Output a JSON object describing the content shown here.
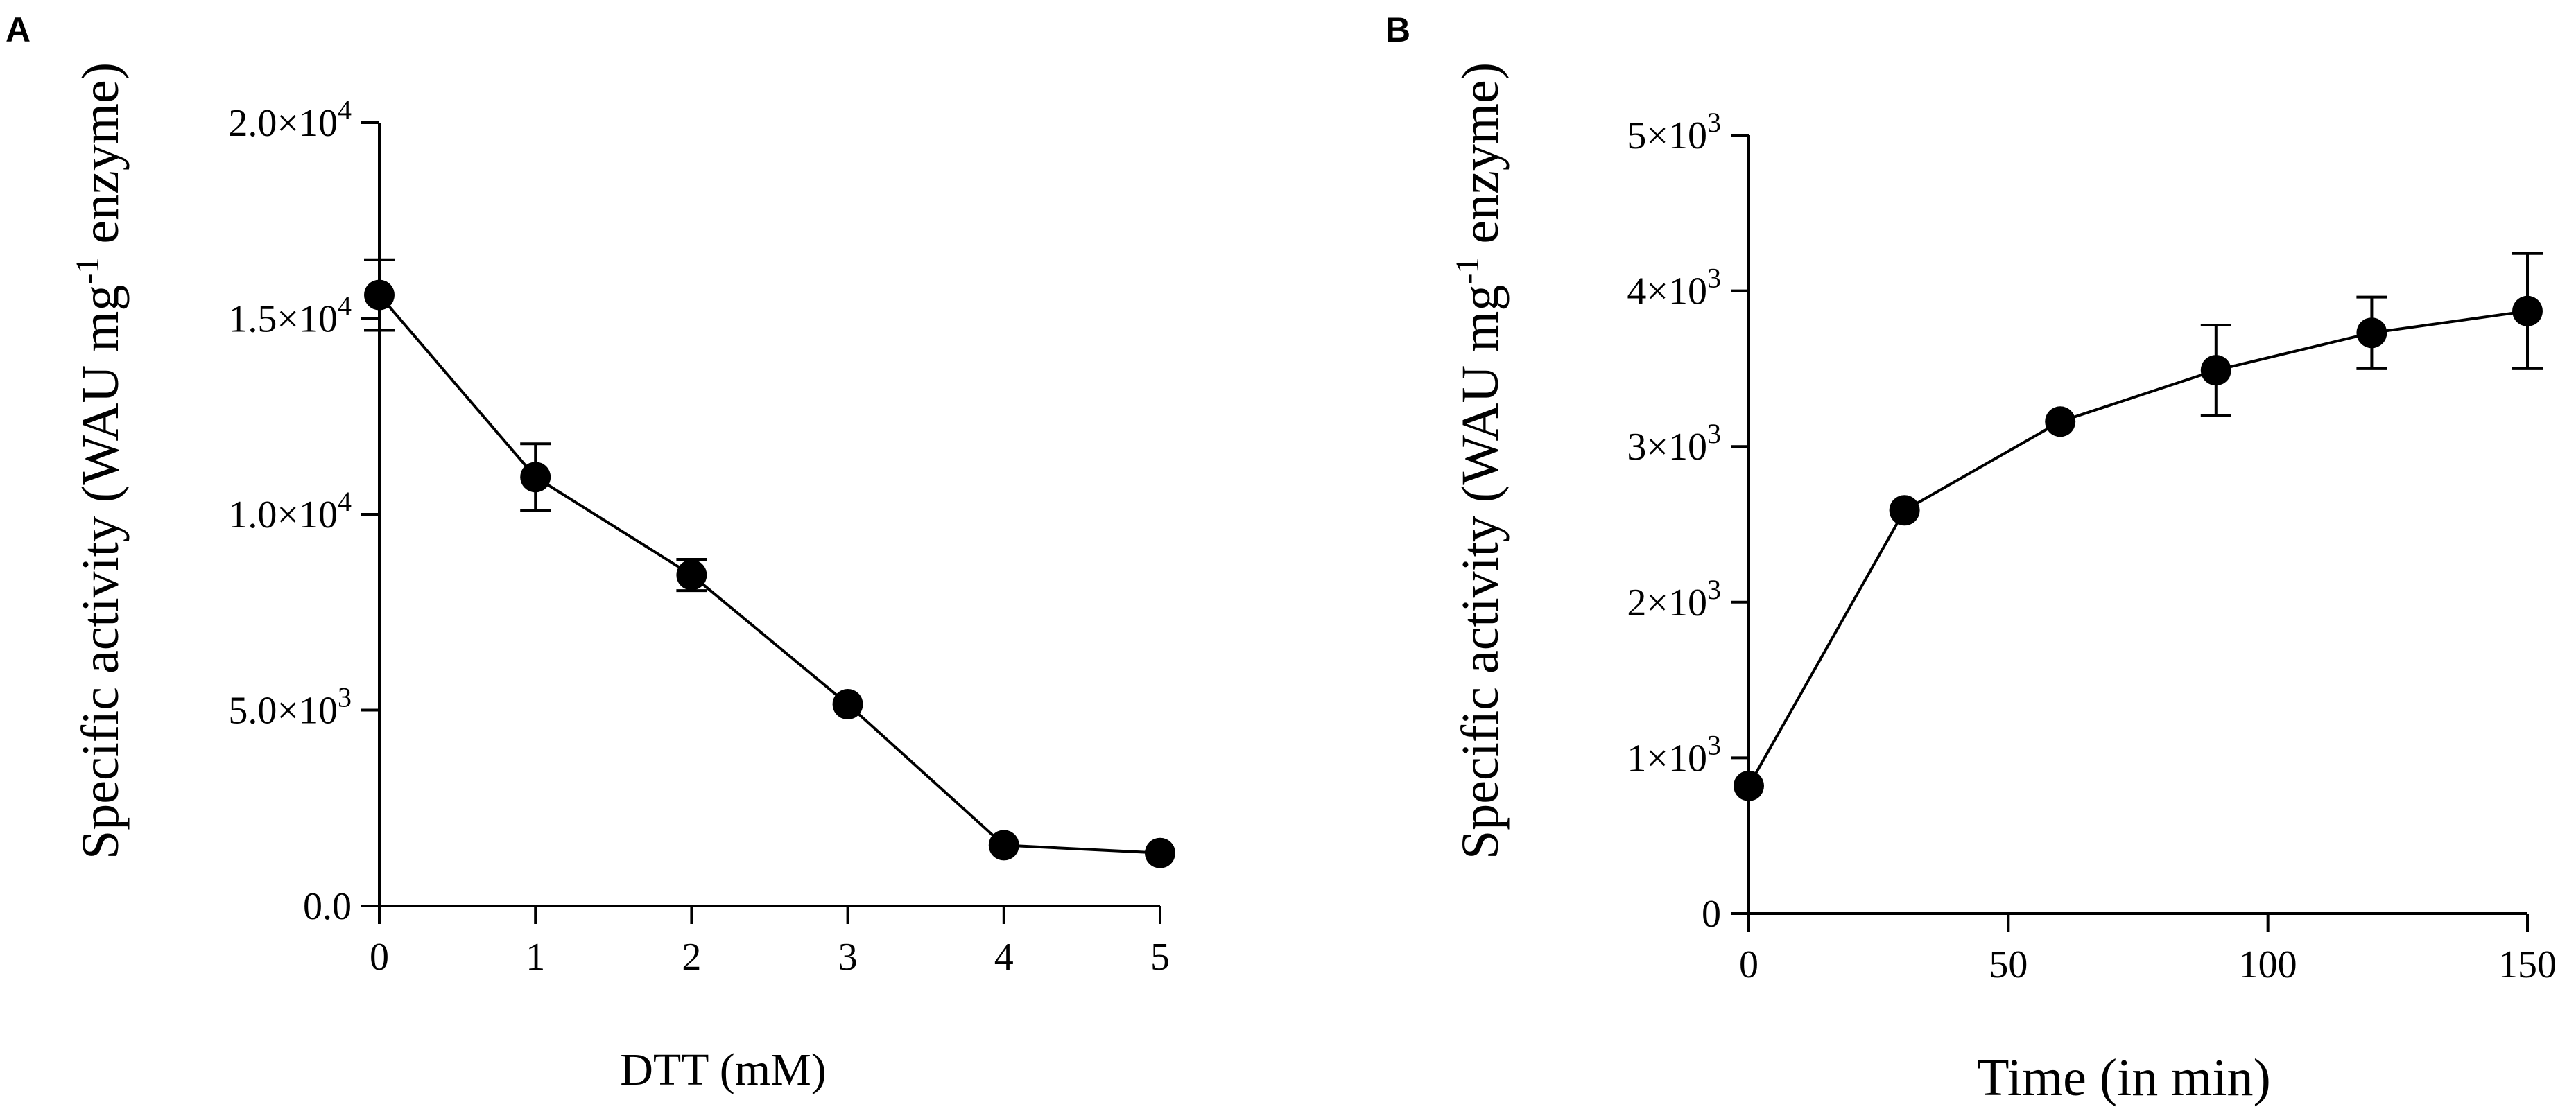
{
  "chart_data": [
    {
      "type": "scatter",
      "panel_label": "A",
      "title": "",
      "xlabel": "DTT (mM)",
      "ylabel_parts": [
        "Specific activity (WAU mg",
        "-1",
        " enzyme)"
      ],
      "xlim": [
        0,
        5
      ],
      "ylim": [
        0,
        20000
      ],
      "x_ticks": [
        0,
        1,
        2,
        3,
        4,
        5
      ],
      "x_tick_labels": [
        "0",
        "1",
        "2",
        "3",
        "4",
        "5"
      ],
      "y_ticks": [
        0,
        5000,
        10000,
        15000,
        20000
      ],
      "y_tick_labels": [
        {
          "mantissa": "0.0",
          "exp": ""
        },
        {
          "mantissa": "5.0×10",
          "exp": "3"
        },
        {
          "mantissa": "1.0×10",
          "exp": "4"
        },
        {
          "mantissa": "1.5×10",
          "exp": "4"
        },
        {
          "mantissa": "2.0×10",
          "exp": "4"
        }
      ],
      "grid": false,
      "legend": "none",
      "color": "#000000",
      "points": [
        {
          "x": 0,
          "y": 15600,
          "err": 900
        },
        {
          "x": 1,
          "y": 10950,
          "err": 850
        },
        {
          "x": 2,
          "y": 8450,
          "err": 400
        },
        {
          "x": 3,
          "y": 5150,
          "err": 0
        },
        {
          "x": 4,
          "y": 1550,
          "err": 0
        },
        {
          "x": 5,
          "y": 1350,
          "err": 0
        }
      ]
    },
    {
      "type": "scatter",
      "panel_label": "B",
      "title": "",
      "xlabel": "Time (in min)",
      "ylabel_parts": [
        "Specific activity (WAU mg",
        "-1",
        " enzyme)"
      ],
      "xlim": [
        0,
        150
      ],
      "ylim": [
        0,
        5000
      ],
      "x_ticks": [
        0,
        50,
        100,
        150
      ],
      "x_tick_labels": [
        "0",
        "50",
        "100",
        "150"
      ],
      "y_ticks": [
        0,
        1000,
        2000,
        3000,
        4000,
        5000
      ],
      "y_tick_labels": [
        {
          "mantissa": "0",
          "exp": ""
        },
        {
          "mantissa": "1×10",
          "exp": "3"
        },
        {
          "mantissa": "2×10",
          "exp": "3"
        },
        {
          "mantissa": "3×10",
          "exp": "3"
        },
        {
          "mantissa": "4×10",
          "exp": "3"
        },
        {
          "mantissa": "5×10",
          "exp": "3"
        }
      ],
      "grid": false,
      "legend": "none",
      "color": "#000000",
      "points": [
        {
          "x": 0,
          "y": 820,
          "err": 0
        },
        {
          "x": 30,
          "y": 2590,
          "err": 0
        },
        {
          "x": 60,
          "y": 3160,
          "err": 0
        },
        {
          "x": 90,
          "y": 3490,
          "err": 290
        },
        {
          "x": 120,
          "y": 3730,
          "err": 230
        },
        {
          "x": 150,
          "y": 3870,
          "err": 370
        }
      ]
    }
  ]
}
